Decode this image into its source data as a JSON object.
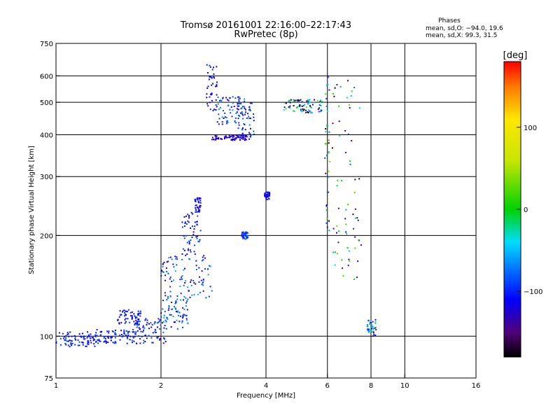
{
  "header": {
    "title_line1": "Tromsø 20161001 22:16:00–22:17:43",
    "title_line2": "RwPretec (8p)",
    "phase_title": "Phases",
    "phase_o": "mean, sd,O: −94.0, 19.6",
    "phase_x": "mean, sd,X:  99.3, 31.5"
  },
  "colorbar": {
    "label": "[deg]",
    "ticks": [
      {
        "value": 100,
        "label": "100"
      },
      {
        "value": 0,
        "label": "0"
      },
      {
        "value": -100,
        "label": "−100"
      }
    ],
    "range": [
      -180,
      180
    ]
  },
  "chart_data": {
    "type": "scatter",
    "xlabel": "Frequency [MHz]",
    "ylabel": "Stationary phase Virtual Height [km]",
    "xscale": "log",
    "yscale": "log",
    "xlim": [
      1,
      16
    ],
    "ylim": [
      75,
      750
    ],
    "x_ticks": [
      {
        "value": 1,
        "label": "1"
      },
      {
        "value": 2,
        "label": "2"
      },
      {
        "value": 4,
        "label": "4"
      },
      {
        "value": 6,
        "label": "6"
      },
      {
        "value": 8,
        "label": "8"
      },
      {
        "value": 10,
        "label": "10"
      },
      {
        "value": 16,
        "label": "16"
      }
    ],
    "y_ticks": [
      {
        "value": 75,
        "label": "75"
      },
      {
        "value": 100,
        "label": "100"
      },
      {
        "value": 200,
        "label": "200"
      },
      {
        "value": 300,
        "label": "300"
      },
      {
        "value": 400,
        "label": "400"
      },
      {
        "value": 500,
        "label": "500"
      },
      {
        "value": 600,
        "label": "600"
      },
      {
        "value": 750,
        "label": "750"
      }
    ],
    "x_grid": [
      2,
      4,
      6,
      8,
      10
    ],
    "y_grid": [
      100,
      200,
      300,
      400,
      500,
      600
    ],
    "clusters": [
      {
        "fmin": 1.0,
        "fmax": 1.3,
        "hmin": 93,
        "hmax": 103,
        "phase": -105,
        "spread": 15
      },
      {
        "fmin": 1.3,
        "fmax": 1.7,
        "hmin": 95,
        "hmax": 105,
        "phase": -100,
        "spread": 15
      },
      {
        "fmin": 1.5,
        "fmax": 1.75,
        "hmin": 108,
        "hmax": 120,
        "phase": -110,
        "spread": 20
      },
      {
        "fmin": 1.7,
        "fmax": 2.1,
        "hmin": 95,
        "hmax": 115,
        "phase": -100,
        "spread": 25
      },
      {
        "fmin": 2.0,
        "fmax": 2.4,
        "hmin": 105,
        "hmax": 130,
        "phase": -90,
        "spread": 40
      },
      {
        "fmin": 2.0,
        "fmax": 2.8,
        "hmin": 130,
        "hmax": 175,
        "phase": -95,
        "spread": 40
      },
      {
        "fmin": 2.3,
        "fmax": 2.6,
        "hmin": 175,
        "hmax": 235,
        "phase": -105,
        "spread": 25
      },
      {
        "fmin": 2.5,
        "fmax": 2.6,
        "hmin": 235,
        "hmax": 260,
        "phase": -110,
        "spread": 15
      },
      {
        "fmin": 2.7,
        "fmax": 2.9,
        "hmin": 470,
        "hmax": 650,
        "phase": -110,
        "spread": 20
      },
      {
        "fmin": 2.8,
        "fmax": 3.6,
        "hmin": 385,
        "hmax": 400,
        "phase": -125,
        "spread": 15
      },
      {
        "fmin": 2.9,
        "fmax": 3.5,
        "hmin": 430,
        "hmax": 520,
        "phase": -95,
        "spread": 35
      },
      {
        "fmin": 3.3,
        "fmax": 3.7,
        "hmin": 390,
        "hmax": 500,
        "phase": -100,
        "spread": 25
      },
      {
        "fmin": 3.4,
        "fmax": 3.55,
        "hmin": 195,
        "hmax": 205,
        "phase": -95,
        "spread": 15
      },
      {
        "fmin": 3.95,
        "fmax": 4.1,
        "hmin": 255,
        "hmax": 270,
        "phase": -110,
        "spread": 15
      },
      {
        "fmin": 4.5,
        "fmax": 5.8,
        "hmin": 465,
        "hmax": 510,
        "phase": -80,
        "spread": 120
      },
      {
        "fmin": 5.9,
        "fmax": 6.1,
        "hmin": 200,
        "hmax": 600,
        "phase": -70,
        "spread": 120
      },
      {
        "fmin": 6.2,
        "fmax": 7.5,
        "hmin": 140,
        "hmax": 600,
        "phase": -75,
        "spread": 110
      },
      {
        "fmin": 7.8,
        "fmax": 8.3,
        "hmin": 100,
        "hmax": 112,
        "phase": -80,
        "spread": 90
      }
    ]
  }
}
